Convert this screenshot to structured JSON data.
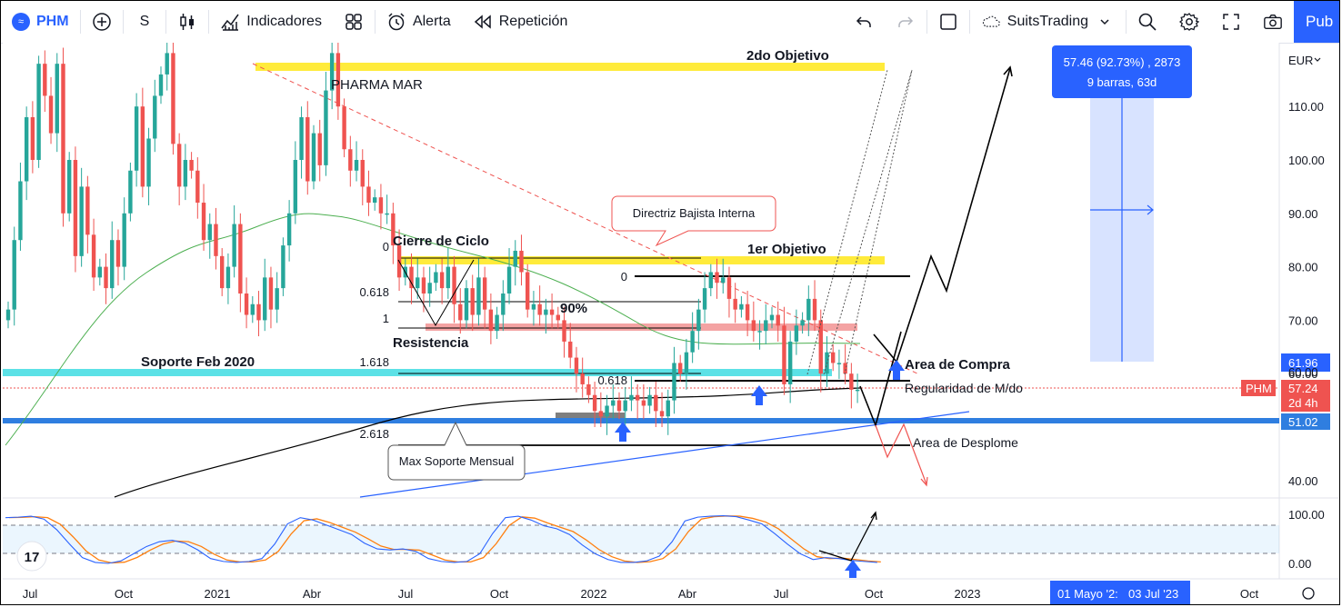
{
  "toolbar": {
    "symbol": "PHM",
    "interval": "S",
    "indicators_label": "Indicadores",
    "alert_label": "Alerta",
    "replay_label": "Repetición",
    "layout_name": "SuitsTrading",
    "publish_label": "Pub"
  },
  "chart_data": {
    "type": "candlestick",
    "symbol": "PHM",
    "currency": "EUR",
    "x_ticks": [
      "Jul",
      "Oct",
      "2021",
      "Abr",
      "Jul",
      "Oct",
      "2022",
      "Abr",
      "Jul",
      "Oct",
      "2023",
      "Oct"
    ],
    "y_ticks": [
      40,
      50,
      60,
      70,
      80,
      90,
      100,
      110
    ],
    "ylim": [
      34,
      122
    ],
    "last_price": "57.24",
    "last_price_countdown": "2d 4h",
    "price_tags": [
      "61.96",
      "60.00",
      "51.02"
    ],
    "measure_box": {
      "line1": "57.46 (92.73%) , 2873",
      "line2": "9 barras, 63d"
    },
    "time_range_labels": [
      "01 Mayo '2:",
      "03 Jul '23"
    ],
    "annotations": {
      "company": "PHARMA MAR",
      "target2": "2do Objetivo",
      "target1": "1er Objetivo",
      "cycle_close": "Cierre de Ciclo",
      "resistance": "Resistencia",
      "support_feb": "Soporte Feb 2020",
      "inner_trendline": "Directriz Bajista Interna",
      "monthly_support": "Max Soporte Mensual",
      "buy_area": "Area de Compra",
      "regularity": "Regularidad de M/do",
      "collapse_area": "Area de Desplome",
      "pct_90": "90%"
    },
    "fib_left": [
      "0",
      "0.618",
      "1",
      "1.618",
      "2.618"
    ],
    "fib_right": [
      "0",
      "0.618"
    ],
    "oscillator": {
      "y_ticks": [
        "100.00",
        "0.00"
      ],
      "levels": [
        80,
        20
      ]
    },
    "colors": {
      "up": "#26a69a",
      "down": "#ef5350",
      "target": "#ffeb3b",
      "support": "#5ce1e6",
      "support_blue": "#2962ff",
      "ma50": "#4caf50",
      "ma200": "#000000",
      "trend_red": "#ef5350",
      "osc_k": "#2962ff",
      "osc_d": "#ff7f0e"
    }
  }
}
